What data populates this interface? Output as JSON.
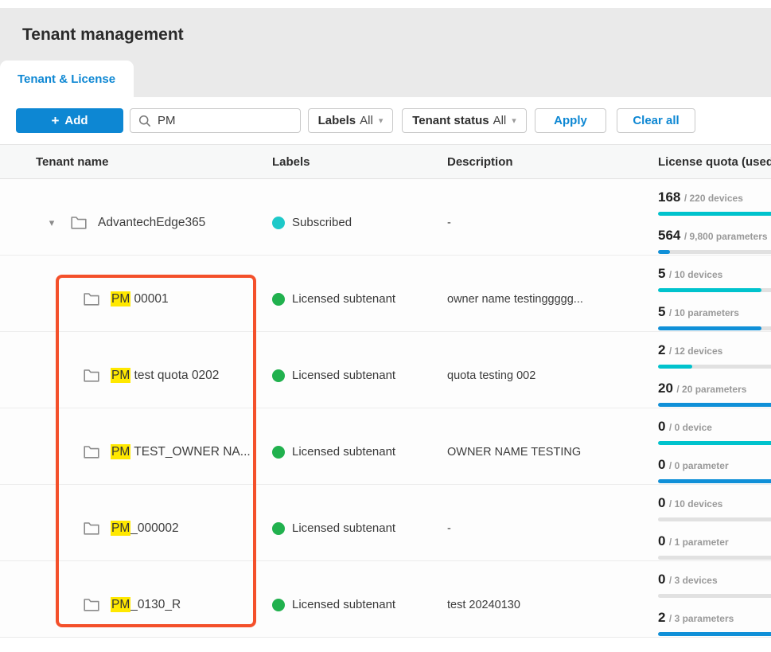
{
  "page": {
    "title": "Tenant management"
  },
  "tab": {
    "label": "Tenant & License"
  },
  "toolbar": {
    "add_plus": "+",
    "add_label": "Add",
    "search": {
      "value": "PM",
      "placeholder": ""
    },
    "labels_filter": {
      "label": "Labels",
      "value": "All",
      "caret": "▾"
    },
    "status_filter": {
      "label": "Tenant status",
      "value": "All",
      "caret": "▾"
    },
    "apply_label": "Apply",
    "clear_label": "Clear all"
  },
  "colors": {
    "accent_blue": "#0d87d3",
    "highlight_yellow": "#ffe800",
    "annotation_orange": "#f4502b",
    "bar_devices": "#00c3cd",
    "bar_parameters": "#1090d8",
    "bar_track": "#e1e1e1",
    "dot_subscribed": "#1ec9c9",
    "dot_licensed": "#21b14e"
  },
  "table": {
    "columns": [
      "Tenant name",
      "Labels",
      "Description",
      "License quota (used / total)"
    ],
    "expand_caret": "▾",
    "rows": [
      {
        "expandable": true,
        "name_highlight": "",
        "name_rest": "AdvantechEdge365",
        "label": {
          "text": "Subscribed",
          "color": "#1ec9c9"
        },
        "description": "-",
        "quota": [
          {
            "used": "168",
            "total": "220",
            "unit": "devices",
            "kind": "devices"
          },
          {
            "used": "564",
            "total": "9,800",
            "unit": "parameters",
            "kind": "parameters"
          }
        ]
      },
      {
        "expandable": false,
        "name_highlight": "PM",
        "name_rest": " 00001",
        "label": {
          "text": "Licensed subtenant",
          "color": "#21b14e"
        },
        "description": "owner name testinggggg...",
        "quota": [
          {
            "used": "5",
            "total": "10",
            "unit": "devices",
            "kind": "devices"
          },
          {
            "used": "5",
            "total": "10",
            "unit": "parameters",
            "kind": "parameters"
          }
        ]
      },
      {
        "expandable": false,
        "name_highlight": "PM",
        "name_rest": " test quota 0202",
        "label": {
          "text": "Licensed subtenant",
          "color": "#21b14e"
        },
        "description": "quota testing 002",
        "quota": [
          {
            "used": "2",
            "total": "12",
            "unit": "devices",
            "kind": "devices"
          },
          {
            "used": "20",
            "total": "20",
            "unit": "parameters",
            "kind": "parameters"
          }
        ]
      },
      {
        "expandable": false,
        "name_highlight": "PM",
        "name_rest": " TEST_OWNER NA...",
        "label": {
          "text": "Licensed subtenant",
          "color": "#21b14e"
        },
        "description": "OWNER NAME TESTING",
        "quota": [
          {
            "used": "0",
            "total": "0",
            "unit": "device",
            "kind": "devices"
          },
          {
            "used": "0",
            "total": "0",
            "unit": "parameter",
            "kind": "parameters"
          }
        ]
      },
      {
        "expandable": false,
        "name_highlight": "PM",
        "name_rest": "_000002",
        "label": {
          "text": "Licensed subtenant",
          "color": "#21b14e"
        },
        "description": "-",
        "quota": [
          {
            "used": "0",
            "total": "10",
            "unit": "devices",
            "kind": "devices"
          },
          {
            "used": "0",
            "total": "1",
            "unit": "parameter",
            "kind": "parameters"
          }
        ]
      },
      {
        "expandable": false,
        "name_highlight": "PM",
        "name_rest": "_0130_R",
        "label": {
          "text": "Licensed subtenant",
          "color": "#21b14e"
        },
        "description": "test 20240130",
        "quota": [
          {
            "used": "0",
            "total": "3",
            "unit": "devices",
            "kind": "devices"
          },
          {
            "used": "2",
            "total": "3",
            "unit": "parameters",
            "kind": "parameters"
          }
        ]
      }
    ]
  }
}
